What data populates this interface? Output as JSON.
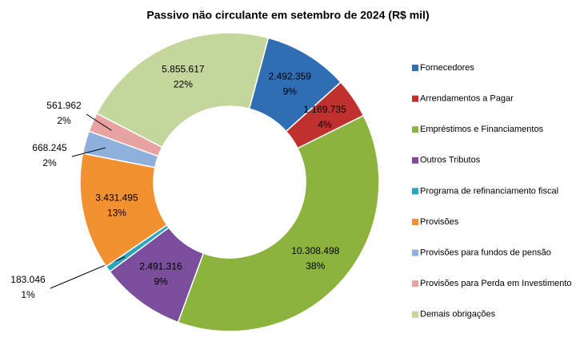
{
  "chart_data": {
    "type": "donut",
    "title": "Passivo não circulante em setembro de 2024 (R$ mil)",
    "categories": [
      "Fornecedores",
      "Arrendamentos a Pagar",
      "Empréstimos e Financiamentos",
      "Outros Tributos",
      "Programa de refinanciamento fiscal",
      "Provisões",
      "Provisões para fundos de pensão",
      "Provisões para Perda em Investimento",
      "Demais obrigações"
    ],
    "values": [
      2492359,
      1169735,
      10308498,
      2491316,
      183046,
      3431495,
      668245,
      561962,
      5855617
    ],
    "value_labels": [
      "2.492.359",
      "1.169.735",
      "10.308.498",
      "2.491.316",
      "183.046",
      "3.431.495",
      "668.245",
      "561.962",
      "5.855.617"
    ],
    "percent_labels": [
      "9%",
      "4%",
      "38%",
      "9%",
      "1%",
      "13%",
      "2%",
      "2%",
      "22%"
    ],
    "colors": [
      "#2f6db5",
      "#c0302e",
      "#8db33f",
      "#7a4e9c",
      "#2aa5c0",
      "#f3902f",
      "#8fb0dc",
      "#e8a2a2",
      "#c3d69b"
    ],
    "legend": "right"
  }
}
